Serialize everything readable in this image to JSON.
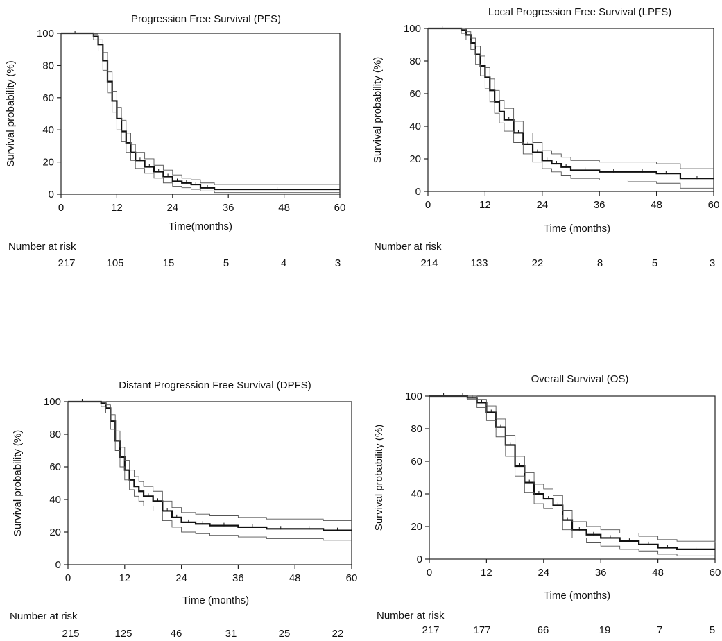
{
  "chart_data": [
    {
      "type": "line",
      "title": "Progression Free Survival (PFS)",
      "xlabel": "Time(months)",
      "ylabel": "Survival probability (%)",
      "xlim": [
        0,
        60
      ],
      "ylim": [
        0,
        100
      ],
      "x_ticks": [
        0,
        12,
        24,
        36,
        48,
        60
      ],
      "y_ticks": [
        0,
        20,
        40,
        60,
        80,
        100
      ],
      "grid": false,
      "risk_label": "Number at risk",
      "risk_values": [
        "217",
        "105",
        "15",
        "5",
        "4",
        "3"
      ],
      "series": [
        {
          "role": "estimate",
          "x": [
            0,
            6,
            7,
            8,
            9,
            10,
            11,
            12,
            13,
            14,
            15,
            16,
            18,
            20,
            22,
            24,
            26,
            28,
            30,
            33,
            60
          ],
          "values": [
            100,
            100,
            98,
            93,
            83,
            70,
            58,
            47,
            39,
            32,
            26,
            21,
            17,
            14,
            11,
            8,
            7,
            6,
            4,
            3,
            3
          ]
        },
        {
          "role": "ci-upper",
          "x": [
            0,
            6,
            7,
            8,
            9,
            10,
            11,
            12,
            13,
            14,
            15,
            16,
            18,
            20,
            22,
            24,
            26,
            28,
            30,
            33,
            60
          ],
          "values": [
            100,
            100,
            99.5,
            96,
            88,
            76,
            64,
            54,
            46,
            38,
            31,
            26,
            22,
            18,
            15,
            12,
            10,
            9,
            7,
            6,
            6
          ]
        },
        {
          "role": "ci-lower",
          "x": [
            0,
            6,
            7,
            8,
            9,
            10,
            11,
            12,
            13,
            14,
            15,
            16,
            18,
            20,
            22,
            24,
            26,
            28,
            30,
            33,
            60
          ],
          "values": [
            100,
            100,
            96,
            89,
            77,
            63,
            51,
            40,
            33,
            26,
            21,
            16,
            13,
            10,
            7,
            5,
            4,
            3,
            2,
            1,
            1
          ]
        }
      ]
    },
    {
      "type": "line",
      "title": "Local Progression Free Survival (LPFS)",
      "xlabel": "Time (months)",
      "ylabel": "Survival probability (%)",
      "xlim": [
        0,
        60
      ],
      "ylim": [
        0,
        100
      ],
      "x_ticks": [
        0,
        12,
        24,
        36,
        48,
        60
      ],
      "y_ticks": [
        0,
        20,
        40,
        60,
        80,
        100
      ],
      "grid": false,
      "risk_label": "Number at risk",
      "risk_values": [
        "214",
        "133",
        "22",
        "8",
        "5",
        "3"
      ],
      "series": [
        {
          "role": "estimate",
          "x": [
            0,
            6,
            7,
            8,
            9,
            10,
            11,
            12,
            13,
            14,
            15,
            16,
            18,
            20,
            22,
            24,
            26,
            28,
            30,
            36,
            42,
            48,
            52,
            53,
            60
          ],
          "values": [
            100,
            100,
            99,
            96,
            91,
            84,
            77,
            70,
            62,
            55,
            49,
            44,
            36,
            29,
            24,
            19,
            17,
            15,
            13,
            12,
            12,
            11,
            11,
            8,
            8
          ]
        },
        {
          "role": "ci-upper",
          "x": [
            0,
            6,
            7,
            8,
            9,
            10,
            11,
            12,
            13,
            14,
            15,
            16,
            18,
            20,
            22,
            24,
            26,
            28,
            30,
            36,
            42,
            48,
            52,
            53,
            60
          ],
          "values": [
            100,
            100,
            100,
            98,
            94,
            89,
            83,
            76,
            69,
            62,
            56,
            51,
            43,
            36,
            30,
            25,
            23,
            21,
            19,
            18,
            18,
            17,
            17,
            14,
            14
          ]
        },
        {
          "role": "ci-lower",
          "x": [
            0,
            6,
            7,
            8,
            9,
            10,
            11,
            12,
            13,
            14,
            15,
            16,
            18,
            20,
            22,
            24,
            26,
            28,
            30,
            36,
            42,
            48,
            52,
            53,
            60
          ],
          "values": [
            100,
            100,
            97,
            93,
            87,
            78,
            71,
            63,
            55,
            48,
            42,
            37,
            30,
            23,
            18,
            14,
            12,
            10,
            8,
            7,
            6,
            5,
            5,
            2,
            2
          ]
        }
      ]
    },
    {
      "type": "line",
      "title": "Distant Progression Free Survival (DPFS)",
      "xlabel": "Time (months)",
      "ylabel": "Survival probability (%)",
      "xlim": [
        0,
        60
      ],
      "ylim": [
        0,
        100
      ],
      "x_ticks": [
        0,
        12,
        24,
        36,
        48,
        60
      ],
      "y_ticks": [
        0,
        20,
        40,
        60,
        80,
        100
      ],
      "grid": false,
      "risk_label": "Number at risk",
      "risk_values": [
        "215",
        "125",
        "46",
        "31",
        "25",
        "22"
      ],
      "series": [
        {
          "role": "estimate",
          "x": [
            0,
            6,
            7,
            8,
            9,
            10,
            11,
            12,
            13,
            14,
            15,
            16,
            18,
            20,
            22,
            24,
            27,
            30,
            36,
            42,
            48,
            54,
            60
          ],
          "values": [
            100,
            100,
            99,
            96,
            88,
            76,
            66,
            58,
            52,
            48,
            45,
            42,
            39,
            33,
            29,
            26,
            25,
            24,
            23,
            22,
            22,
            21,
            21
          ]
        },
        {
          "role": "ci-upper",
          "x": [
            0,
            6,
            7,
            8,
            9,
            10,
            11,
            12,
            13,
            14,
            15,
            16,
            18,
            20,
            22,
            24,
            27,
            30,
            36,
            42,
            48,
            54,
            60
          ],
          "values": [
            100,
            100,
            100,
            98,
            92,
            82,
            72,
            64,
            58,
            54,
            51,
            48,
            45,
            39,
            35,
            32,
            31,
            30,
            29,
            28,
            28,
            27,
            27
          ]
        },
        {
          "role": "ci-lower",
          "x": [
            0,
            6,
            7,
            8,
            9,
            10,
            11,
            12,
            13,
            14,
            15,
            16,
            18,
            20,
            22,
            24,
            27,
            30,
            36,
            42,
            48,
            54,
            60
          ],
          "values": [
            100,
            100,
            97,
            93,
            83,
            70,
            60,
            52,
            46,
            42,
            39,
            36,
            33,
            27,
            23,
            20,
            19,
            18,
            17,
            16,
            16,
            15,
            15
          ]
        }
      ]
    },
    {
      "type": "line",
      "title": "Overall Survival (OS)",
      "xlabel": "Time (months)",
      "ylabel": "Survival probability (%)",
      "xlim": [
        0,
        60
      ],
      "ylim": [
        0,
        100
      ],
      "x_ticks": [
        0,
        12,
        24,
        36,
        48,
        60
      ],
      "y_ticks": [
        0,
        20,
        40,
        60,
        80,
        100
      ],
      "grid": false,
      "risk_label": "Number at risk",
      "risk_values": [
        "217",
        "177",
        "66",
        "19",
        "7",
        "5"
      ],
      "series": [
        {
          "role": "estimate",
          "x": [
            0,
            6,
            8,
            10,
            12,
            14,
            16,
            18,
            20,
            22,
            24,
            26,
            28,
            30,
            33,
            36,
            40,
            44,
            48,
            52,
            60
          ],
          "values": [
            100,
            100,
            99,
            96,
            90,
            81,
            70,
            57,
            47,
            40,
            37,
            33,
            24,
            18,
            15,
            13,
            11,
            9,
            7,
            6,
            6
          ]
        },
        {
          "role": "ci-upper",
          "x": [
            0,
            6,
            8,
            10,
            12,
            14,
            16,
            18,
            20,
            22,
            24,
            26,
            28,
            30,
            33,
            36,
            40,
            44,
            48,
            52,
            60
          ],
          "values": [
            100,
            100,
            100,
            98,
            94,
            86,
            76,
            63,
            53,
            46,
            43,
            39,
            30,
            23,
            20,
            18,
            16,
            14,
            12,
            11,
            10
          ]
        },
        {
          "role": "ci-lower",
          "x": [
            0,
            6,
            8,
            10,
            12,
            14,
            16,
            18,
            20,
            22,
            24,
            26,
            28,
            30,
            33,
            36,
            40,
            44,
            48,
            52,
            60
          ],
          "values": [
            100,
            100,
            98,
            93,
            85,
            75,
            63,
            51,
            41,
            34,
            31,
            27,
            18,
            13,
            10,
            8,
            6,
            5,
            3,
            2,
            2
          ]
        }
      ]
    }
  ]
}
